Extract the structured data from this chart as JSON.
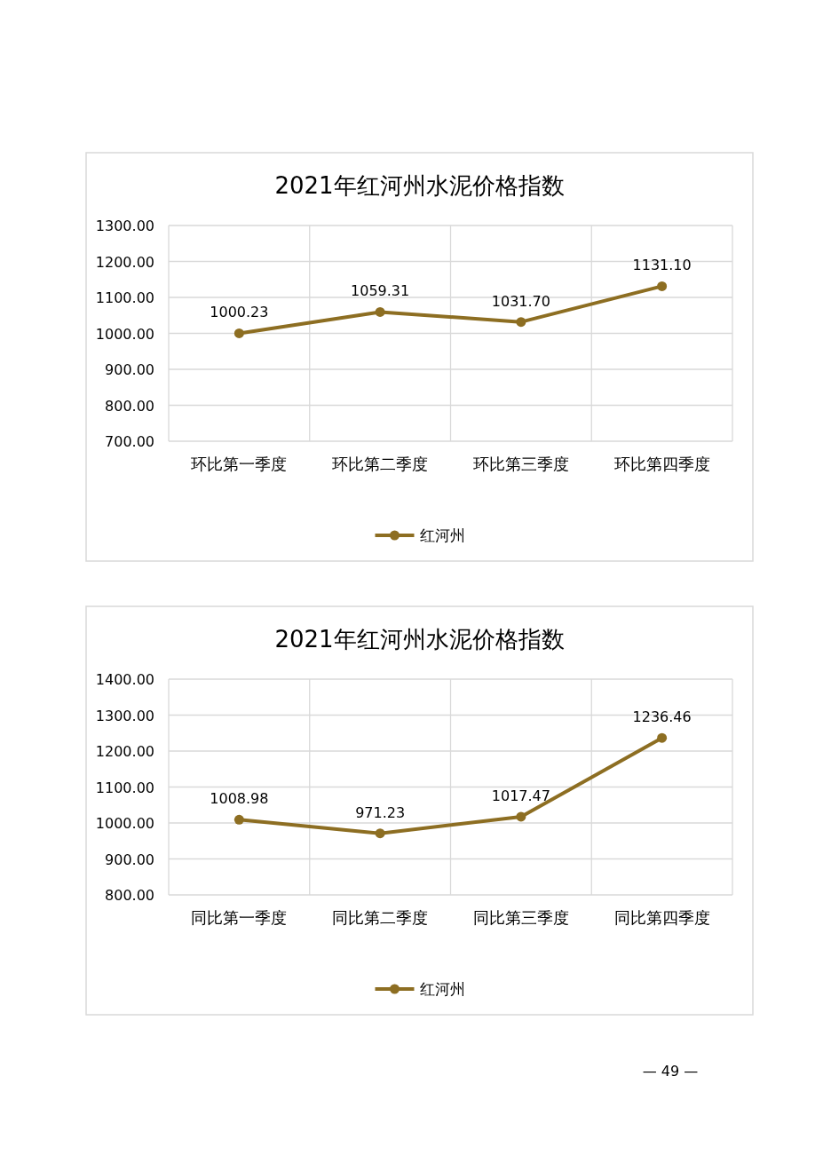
{
  "chart_data": [
    {
      "type": "line",
      "title": "2021年红河州水泥价格指数",
      "categories": [
        "环比第一季度",
        "环比第二季度",
        "环比第三季度",
        "环比第四季度"
      ],
      "series": [
        {
          "name": "红河州",
          "color": "#8d6e22",
          "values": [
            1000.23,
            1059.31,
            1031.7,
            1131.1
          ],
          "value_labels": [
            "1000.23",
            "1059.31",
            "1031.70",
            "1131.10"
          ]
        }
      ],
      "ylim": [
        700,
        1300
      ],
      "yticks": [
        {
          "value": 700,
          "label": "700.00"
        },
        {
          "value": 800,
          "label": "800.00"
        },
        {
          "value": 900,
          "label": "900.00"
        },
        {
          "value": 1000,
          "label": "1000.00"
        },
        {
          "value": 1100,
          "label": "1100.00"
        },
        {
          "value": 1200,
          "label": "1200.00"
        },
        {
          "value": 1300,
          "label": "1300.00"
        }
      ],
      "grid": true,
      "legend": "bottom",
      "marker": "circle",
      "line_style": "solid"
    },
    {
      "type": "line",
      "title": "2021年红河州水泥价格指数",
      "categories": [
        "同比第一季度",
        "同比第二季度",
        "同比第三季度",
        "同比第四季度"
      ],
      "series": [
        {
          "name": "红河州",
          "color": "#8d6e22",
          "values": [
            1008.98,
            971.23,
            1017.47,
            1236.46
          ],
          "value_labels": [
            "1008.98",
            "971.23",
            "1017.47",
            "1236.46"
          ]
        }
      ],
      "ylim": [
        800,
        1400
      ],
      "yticks": [
        {
          "value": 800,
          "label": "800.00"
        },
        {
          "value": 900,
          "label": "900.00"
        },
        {
          "value": 1000,
          "label": "1000.00"
        },
        {
          "value": 1100,
          "label": "1100.00"
        },
        {
          "value": 1200,
          "label": "1200.00"
        },
        {
          "value": 1300,
          "label": "1300.00"
        },
        {
          "value": 1400,
          "label": "1400.00"
        }
      ],
      "grid": true,
      "legend": "bottom",
      "marker": "circle",
      "line_style": "solid",
      "annotations": [
        "— 49 —"
      ]
    }
  ]
}
